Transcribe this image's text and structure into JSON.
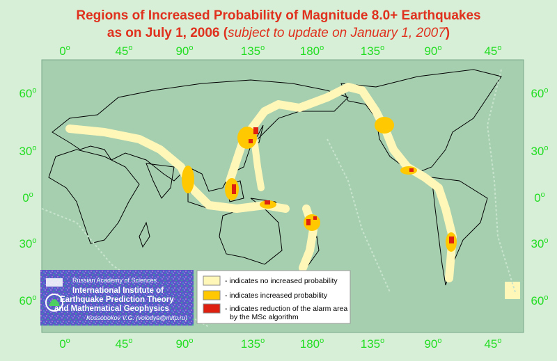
{
  "header": {
    "title_line1": "Regions of Increased Probability of Magnitude 8.0+ Earthquakes",
    "title_line2_prefix": "as on July 1, 2006 (",
    "title_line2_note": "subject to update on January 1, 2007",
    "title_line2_suffix": ")"
  },
  "map": {
    "degree_mark": "o",
    "longitude_labels": [
      "0",
      "45",
      "90",
      "135",
      "180",
      "135",
      "90",
      "45"
    ],
    "latitude_labels": [
      "60",
      "30",
      "0",
      "30",
      "60"
    ]
  },
  "legend": {
    "items": [
      {
        "color": "#fff7b8",
        "label": "- indicates no increased probability"
      },
      {
        "color": "#ffc800",
        "label": "- indicates increased probability"
      },
      {
        "color": "#dd2010",
        "label": "- indicates reduction of the alarm area",
        "label2": "by the MSc algorithm"
      }
    ]
  },
  "institute": {
    "academy": "Russian Academy of Sciences",
    "name_lines": [
      "International Institute of",
      "Earthquake Prediction Theory",
      "and Mathematical Geophysics"
    ],
    "author": "Kossobokov V.G. (volodya@mitp.ru)"
  }
}
